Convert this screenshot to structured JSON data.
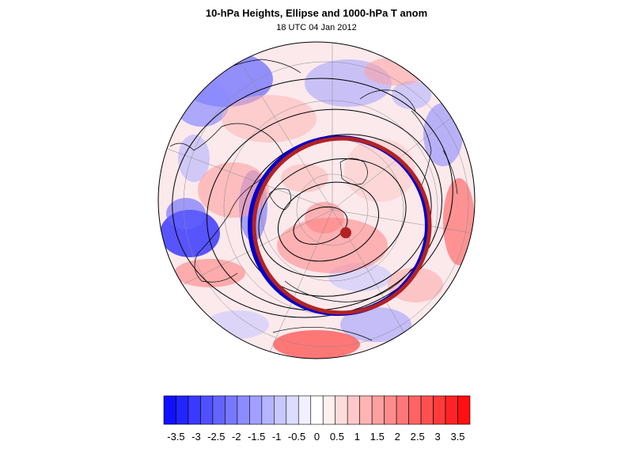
{
  "title": "10-hPa Heights, Ellipse and 1000-hPa T anom",
  "subtitle": "18 UTC 04 Jan 2012",
  "colorbar": {
    "tick_labels": [
      "-3.5",
      "-3",
      "-2.5",
      "-2",
      "-1.5",
      "-1",
      "-0.5",
      "0",
      "0.5",
      "1",
      "1.5",
      "2",
      "2.5",
      "3",
      "3.5"
    ],
    "colors": [
      "#1010ff",
      "#2424ff",
      "#3a3aff",
      "#5050ff",
      "#6464ff",
      "#7878ff",
      "#8c8cff",
      "#a0a0ff",
      "#b4b4ff",
      "#c8c8ff",
      "#dcdcff",
      "#f0f0ff",
      "#ffffff",
      "#fff0f0",
      "#ffdcdc",
      "#ffc8c8",
      "#ffb4b4",
      "#ffa0a0",
      "#ff8c8c",
      "#ff7878",
      "#ff6464",
      "#ff5050",
      "#ff3a3a",
      "#ff2424",
      "#ff1010"
    ]
  },
  "colors": {
    "ellipse": "#b22222",
    "ellipse_shadow": "#0000cc",
    "contour": "#000000",
    "center_dot": "#b22222"
  }
}
